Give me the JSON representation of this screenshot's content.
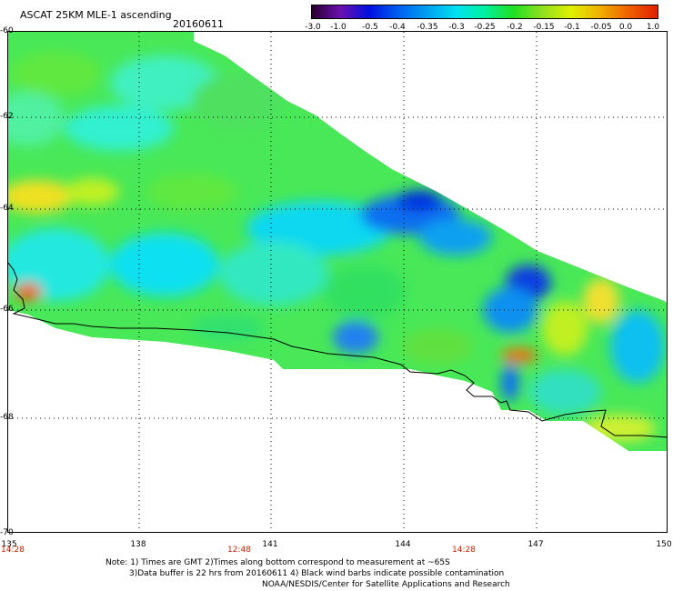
{
  "header": {
    "title": "ASCAT 25KM MLE-1 ascending",
    "date": "20160611"
  },
  "colorbar": {
    "labels": [
      "-3.0",
      "-1.0",
      "-0.5",
      "-0.4",
      "-0.35",
      "-0.3",
      "-0.25",
      "-0.2",
      "-0.15",
      "-0.1",
      "-0.05",
      "0.0",
      "1.0"
    ],
    "colors": [
      "#2a0030",
      "#6a10b0",
      "#0010e0",
      "#0060f0",
      "#00a0f0",
      "#00e0f0",
      "#00f0a0",
      "#20e020",
      "#90e020",
      "#e0f000",
      "#f0b000",
      "#f06000",
      "#e02000"
    ]
  },
  "axes": {
    "lat_labels": [
      "-60",
      "-62",
      "-64",
      "-66",
      "-68",
      "-70"
    ],
    "lon_labels": [
      "135",
      "138",
      "141",
      "144",
      "147",
      "150"
    ],
    "time_labels": [
      "14:28",
      "12:48",
      "14:28"
    ],
    "time_color": "#cc2200"
  },
  "notes": {
    "line1": "Note: 1) Times are GMT 2)Times along bottom correspond to measurement at ~65S",
    "line2": "3)Data buffer is 22 hrs from 20160611 4) Black wind barbs indicate possible contamination",
    "line3": "NOAA/NESDIS/Center for Satellite Applications and Research"
  }
}
